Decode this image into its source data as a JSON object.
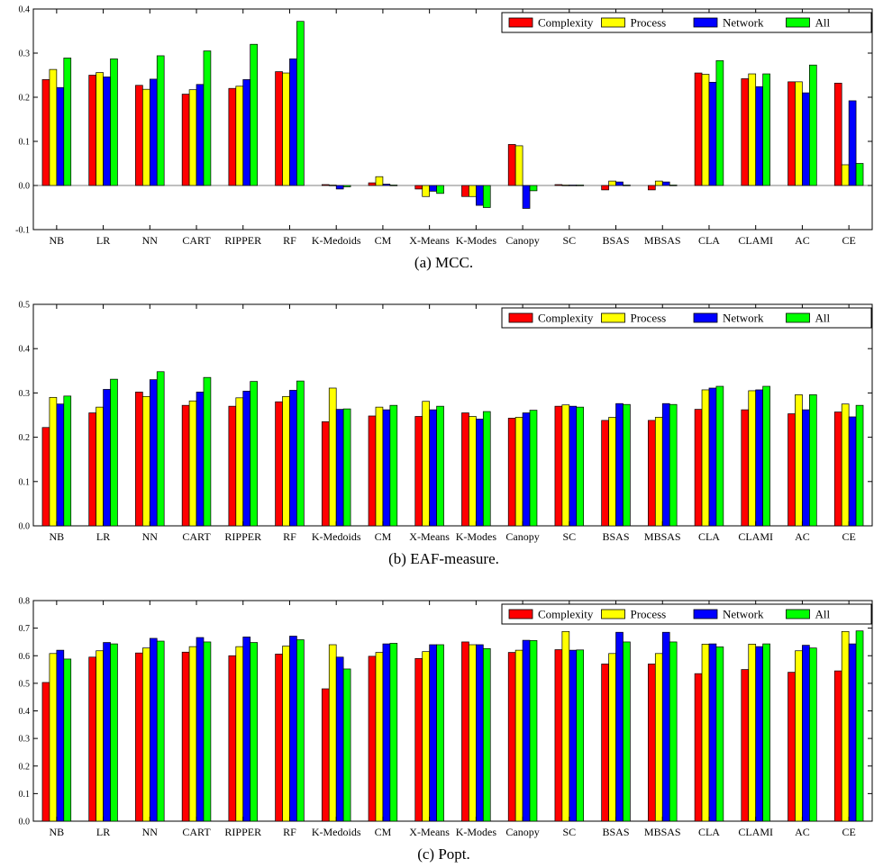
{
  "chart_data": [
    {
      "type": "bar",
      "caption": "(a)  MCC.",
      "categories": [
        "NB",
        "LR",
        "NN",
        "CART",
        "RIPPER",
        "RF",
        "K-Medoids",
        "CM",
        "X-Means",
        "K-Modes",
        "Canopy",
        "SC",
        "BSAS",
        "MBSAS",
        "CLA",
        "CLAMI",
        "AC",
        "CE"
      ],
      "ylim": [
        -0.1,
        0.4
      ],
      "yticks": [
        -0.1,
        0.0,
        0.1,
        0.2,
        0.3,
        0.4
      ],
      "legend_position": "top-right",
      "series": [
        {
          "name": "Complexity",
          "color": "#ff0000",
          "values": [
            0.24,
            0.25,
            0.227,
            0.207,
            0.22,
            0.258,
            0.002,
            0.006,
            -0.008,
            -0.025,
            0.093,
            0.002,
            -0.01,
            -0.01,
            0.255,
            0.242,
            0.235,
            0.232
          ]
        },
        {
          "name": "Process",
          "color": "#ffff00",
          "values": [
            0.263,
            0.256,
            0.218,
            0.217,
            0.225,
            0.255,
            0.001,
            0.02,
            -0.025,
            -0.025,
            0.09,
            0.001,
            0.01,
            0.01,
            0.252,
            0.253,
            0.235,
            0.047
          ]
        },
        {
          "name": "Network",
          "color": "#0000ff",
          "values": [
            0.222,
            0.246,
            0.241,
            0.229,
            0.24,
            0.287,
            -0.008,
            0.003,
            -0.013,
            -0.045,
            -0.052,
            0.001,
            0.008,
            0.008,
            0.234,
            0.224,
            0.21,
            0.192
          ]
        },
        {
          "name": "All",
          "color": "#00ff00",
          "values": [
            0.289,
            0.287,
            0.294,
            0.305,
            0.32,
            0.372,
            -0.003,
            0.001,
            -0.018,
            -0.05,
            -0.012,
            0.001,
            0.001,
            0.001,
            0.283,
            0.253,
            0.273,
            0.05
          ]
        }
      ]
    },
    {
      "type": "bar",
      "caption": "(b)  EAF-measure.",
      "categories": [
        "NB",
        "LR",
        "NN",
        "CART",
        "RIPPER",
        "RF",
        "K-Medoids",
        "CM",
        "X-Means",
        "K-Modes",
        "Canopy",
        "SC",
        "BSAS",
        "MBSAS",
        "CLA",
        "CLAMI",
        "AC",
        "CE"
      ],
      "ylim": [
        0.0,
        0.5
      ],
      "yticks": [
        0.0,
        0.1,
        0.2,
        0.3,
        0.4,
        0.5
      ],
      "legend_position": "top-right",
      "series": [
        {
          "name": "Complexity",
          "color": "#ff0000",
          "values": [
            0.222,
            0.255,
            0.302,
            0.272,
            0.27,
            0.28,
            0.235,
            0.248,
            0.247,
            0.255,
            0.243,
            0.27,
            0.238,
            0.238,
            0.263,
            0.262,
            0.253,
            0.257
          ]
        },
        {
          "name": "Process",
          "color": "#ffff00",
          "values": [
            0.29,
            0.268,
            0.292,
            0.282,
            0.289,
            0.292,
            0.311,
            0.268,
            0.281,
            0.247,
            0.245,
            0.273,
            0.245,
            0.245,
            0.307,
            0.305,
            0.296,
            0.275
          ]
        },
        {
          "name": "Network",
          "color": "#0000ff",
          "values": [
            0.275,
            0.308,
            0.33,
            0.302,
            0.304,
            0.306,
            0.263,
            0.262,
            0.262,
            0.241,
            0.255,
            0.27,
            0.276,
            0.276,
            0.311,
            0.307,
            0.262,
            0.246
          ]
        },
        {
          "name": "All",
          "color": "#00ff00",
          "values": [
            0.293,
            0.331,
            0.348,
            0.335,
            0.326,
            0.327,
            0.264,
            0.272,
            0.27,
            0.258,
            0.261,
            0.268,
            0.274,
            0.274,
            0.315,
            0.315,
            0.296,
            0.272
          ]
        }
      ]
    },
    {
      "type": "bar",
      "caption": "(c)  Popt.",
      "categories": [
        "NB",
        "LR",
        "NN",
        "CART",
        "RIPPER",
        "RF",
        "K-Medoids",
        "CM",
        "X-Means",
        "K-Modes",
        "Canopy",
        "SC",
        "BSAS",
        "MBSAS",
        "CLA",
        "CLAMI",
        "AC",
        "CE"
      ],
      "ylim": [
        0.0,
        0.8
      ],
      "yticks": [
        0.0,
        0.1,
        0.2,
        0.3,
        0.4,
        0.5,
        0.6,
        0.7,
        0.8
      ],
      "legend_position": "top-right",
      "series": [
        {
          "name": "Complexity",
          "color": "#ff0000",
          "values": [
            0.503,
            0.595,
            0.61,
            0.613,
            0.6,
            0.606,
            0.48,
            0.598,
            0.59,
            0.65,
            0.612,
            0.622,
            0.57,
            0.57,
            0.535,
            0.55,
            0.54,
            0.545
          ]
        },
        {
          "name": "Process",
          "color": "#ffff00",
          "values": [
            0.608,
            0.618,
            0.628,
            0.633,
            0.633,
            0.635,
            0.64,
            0.612,
            0.615,
            0.64,
            0.62,
            0.688,
            0.608,
            0.608,
            0.642,
            0.642,
            0.618,
            0.688
          ]
        },
        {
          "name": "Network",
          "color": "#0000ff",
          "values": [
            0.62,
            0.648,
            0.663,
            0.666,
            0.668,
            0.671,
            0.595,
            0.643,
            0.64,
            0.64,
            0.656,
            0.62,
            0.685,
            0.685,
            0.643,
            0.633,
            0.638,
            0.643
          ]
        },
        {
          "name": "All",
          "color": "#00ff00",
          "values": [
            0.588,
            0.643,
            0.653,
            0.65,
            0.648,
            0.658,
            0.552,
            0.645,
            0.64,
            0.626,
            0.655,
            0.621,
            0.65,
            0.65,
            0.632,
            0.643,
            0.628,
            0.69
          ]
        }
      ]
    }
  ]
}
